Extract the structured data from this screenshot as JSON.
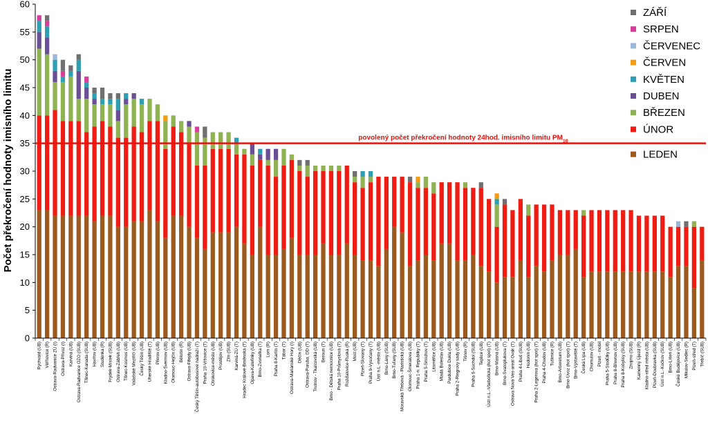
{
  "chart_data": {
    "type": "bar",
    "stacked": true,
    "ylabel": "Počet překročení hodnoty imisního limitu",
    "ylim": [
      0,
      60
    ],
    "yticks": [
      0,
      5,
      10,
      15,
      20,
      25,
      30,
      35,
      40,
      45,
      50,
      55,
      60
    ],
    "grid": false,
    "legend_position": "right",
    "reference_line": {
      "value": 35,
      "label": "povolený počet překročení hodnoty 24hod. imisního limitu PM",
      "label_sub": "10",
      "color": "#e8120c"
    },
    "series_names": [
      "LEDEN",
      "ÚNOR",
      "BŘEZEN",
      "DUBEN",
      "KVĚTEN",
      "ČERVEN",
      "ČERVENEC",
      "SRPEN",
      "ZÁŘÍ"
    ],
    "colors": [
      "#9c5a1e",
      "#ee1c12",
      "#8fb353",
      "#6b4f96",
      "#2e9fb3",
      "#f39c12",
      "#9ab6d8",
      "#d83d9a",
      "#707070"
    ],
    "legend_order": [
      "ZÁŘÍ",
      "SRPEN",
      "ČERVENEC",
      "ČERVEN",
      "KVĚTEN",
      "DUBEN",
      "BŘEZEN",
      "ÚNOR",
      "LEDEN"
    ],
    "categories": [
      "Rychvald (UB)",
      "Věřňovice (R)",
      "Ostrava-Radvanice ZÚ (I)",
      "Ostrava-Přívoz (I)",
      "Karviná (UB)",
      "Ostrava-Radvanice OZO (SUB)",
      "Třinec-Kanada (SUB)",
      "Havířov (UB)",
      "Studénka (R)",
      "Frýdek-Místek (SUB)",
      "Ostrava-Zábřeh (UB)",
      "Třinec-Kosmos (UB)",
      "Valašské Meziříčí (UB)",
      "Český Těšín (UB)",
      "Uherské Hradiště (T)",
      "Přerov (UB)",
      "Kladno-Švermov (UB)",
      "Olomouc-Hejčín (UB)",
      "Bělotín (R)",
      "Ostrava-Fifejdy (UB)",
      "Český Těšín-autobusové nádraží (T)",
      "Praha 10-Vršovice (T)",
      "Otrokovice-město (UB)",
      "Prostějov (UB)",
      "Zlín (SUB)",
      "Karviná-ZÚ (T)",
      "Hradec Králové-Brněnská (T)",
      "Opava-Kateřinky (UB)",
      "Brno-Zvonařka (T)",
      "Lom (R)",
      "Praha 8-Karlín (T)",
      "Tábor (T)",
      "Ostrava-Mariánské Hory (I)",
      "Děčín (UB)",
      "Ostrava-Poruba, DD (T)",
      "Trutnov - Tkalcovská (UB)",
      "Beroun (T)",
      "Brno - Dětská nemocnice (UB)",
      "Praha 10-Průmyslová (T)",
      "Rožďalovice-Ruská (R)",
      "Most (UB)",
      "Plzeň-Slovany (T)",
      "Praha 9-Vysočany (T)",
      "Ústí n.L.-město (UB)",
      "Brno-Lány (SUB)",
      "Brno-Tuřany (SUB)",
      "Moravská Třebová - Piaristická (UB)",
      "Olomouc-Šmeralova (UB)",
      "Praha 1-n. Republiky (T)",
      "Praha 5-Smíchov (T)",
      "Litoměřice (UB)",
      "Mladá Boleslav (UB)",
      "Pardubice Dukla (UB)",
      "Praha 2-Riegrovy sady (UB)",
      "Tišnov (R)",
      "Praha 6-Suchdol (SUB)",
      "Teplice (UB)",
      "Ústí n.L.-Všebořická (hot spot) (T)",
      "Brno-Masná (UB)",
      "Brno-Svatoplukova (T)",
      "Ostrava Nová Ves-areál Ovak (T)",
      "Praha 4-Libuš (SUB)",
      "Hodonín (UB)",
      "Praha 2-Legerova (hot spot) (T)",
      "Praha 4-Chodov (UB)",
      "Tušimice (R)",
      "Brno-Arboretum (UB)",
      "Brno-Úvoz (hot spot) (T)",
      "Brno-Výstaviště (T)",
      "Česká Lípa (UB)",
      "Chomutov (UB)",
      "Plzeň - mobil",
      "Praha 5-Stodůlky (UB)",
      "Praha 8-Břevnov (UB)",
      "Praha 8-Kobylisy (SUB)",
      "Znojmo (SUB)",
      "Kamenný Újezd (R)",
      "Kladno-střed města (UB)",
      "Plzeň-Doubravka (SUB)",
      "Ústí n.L.-Kočkov (SUB)",
      "Brno-Líšeň (UB)",
      "České Budějovice (UB)",
      "Mikulov-Sedlec (R)",
      "Plzeň-střed (T)",
      "Třebíč (SUB)"
    ],
    "series": [
      {
        "name": "LEDEN",
        "values": [
          23,
          23,
          22,
          22,
          22,
          22,
          22,
          21,
          22,
          22,
          20,
          20,
          21,
          21,
          23,
          21,
          18,
          22,
          22,
          20,
          18,
          16,
          19,
          19,
          19,
          20,
          17,
          15,
          20,
          15,
          15,
          16,
          18,
          15,
          15,
          15,
          17,
          15,
          15,
          17,
          15,
          14,
          14,
          13,
          16,
          20,
          19,
          13,
          14,
          15,
          14,
          17,
          17,
          14,
          14,
          15,
          13,
          12,
          10,
          11,
          11,
          14,
          11,
          13,
          12,
          14,
          15,
          15,
          16,
          11,
          12,
          12,
          12,
          12,
          12,
          12,
          12,
          12,
          12,
          12,
          11,
          13,
          13,
          9,
          14
        ]
      },
      {
        "name": "ÚNOR",
        "values": [
          17,
          17,
          19,
          17,
          17,
          17,
          15,
          17,
          17,
          16,
          16,
          16,
          17,
          16,
          16,
          18,
          16,
          16,
          15,
          15,
          13,
          15,
          15,
          15,
          15,
          13,
          16,
          16,
          12,
          16,
          14,
          15,
          14,
          15,
          14,
          15,
          13,
          15,
          15,
          14,
          13,
          13,
          14,
          16,
          13,
          9,
          10,
          15,
          13,
          12,
          12,
          11,
          11,
          14,
          13,
          12,
          14,
          13,
          10,
          13,
          12,
          11,
          11,
          11,
          12,
          10,
          8,
          8,
          7,
          11,
          11,
          11,
          11,
          11,
          11,
          11,
          10,
          10,
          10,
          10,
          9,
          7,
          7,
          11,
          6
        ]
      },
      {
        "name": "BŘEZEN",
        "values": [
          12,
          11,
          5,
          7,
          8,
          4,
          6,
          4,
          3,
          4,
          3,
          6,
          5,
          5,
          4,
          3,
          5,
          2,
          2,
          3,
          6,
          5,
          3,
          3,
          3,
          2,
          1,
          2,
          0,
          1,
          3,
          3,
          1,
          1,
          2,
          1,
          1,
          1,
          1,
          0,
          1,
          2,
          1,
          0,
          0,
          0,
          0,
          0,
          1,
          2,
          2,
          0,
          0,
          0,
          1,
          0,
          0,
          0,
          4,
          0,
          0,
          0,
          2,
          0,
          0,
          0,
          0,
          0,
          0,
          1,
          0,
          0,
          0,
          0,
          0,
          0,
          0,
          0,
          0,
          0,
          0,
          0,
          0,
          1,
          0
        ]
      },
      {
        "name": "DUBEN",
        "values": [
          3,
          3,
          2,
          0,
          0,
          5,
          2,
          1,
          0,
          0,
          2,
          1,
          1,
          0,
          0,
          0,
          0,
          0,
          0,
          1,
          0,
          0,
          0,
          0,
          0,
          0,
          0,
          2,
          1,
          2,
          2,
          0,
          0,
          0,
          0,
          0,
          0,
          0,
          0,
          0,
          0,
          0,
          0,
          0,
          0,
          0,
          0,
          0,
          0,
          0,
          0,
          0,
          0,
          0,
          0,
          0,
          0,
          0,
          0,
          0,
          0,
          0,
          0,
          0,
          0,
          0,
          0,
          0,
          0,
          0,
          0,
          0,
          0,
          0,
          0,
          0,
          0,
          0,
          0,
          0,
          0,
          0,
          0,
          0,
          0
        ]
      },
      {
        "name": "KVĚTEN",
        "values": [
          2,
          2,
          2,
          1,
          1,
          2,
          1,
          1,
          1,
          1,
          2,
          1,
          0,
          1,
          0,
          0,
          0,
          0,
          0,
          0,
          0,
          0,
          0,
          0,
          0,
          1,
          0,
          0,
          1,
          0,
          0,
          0,
          0,
          0,
          0,
          0,
          0,
          0,
          0,
          0,
          0,
          1,
          1,
          0,
          0,
          0,
          0,
          0,
          0,
          0,
          0,
          0,
          0,
          0,
          0,
          0,
          0,
          0,
          1,
          0,
          0,
          0,
          0,
          0,
          0,
          0,
          0,
          0,
          0,
          0,
          0,
          0,
          0,
          0,
          0,
          0,
          0,
          0,
          0,
          0,
          0,
          0,
          0,
          0,
          0
        ]
      },
      {
        "name": "ČERVEN",
        "values": [
          0,
          0,
          0,
          0,
          0,
          0,
          0,
          0,
          0,
          0,
          0,
          0,
          0,
          0,
          0,
          0,
          1,
          0,
          0,
          0,
          0,
          0,
          0,
          0,
          0,
          0,
          0,
          0,
          0,
          0,
          0,
          0,
          0,
          0,
          0,
          0,
          0,
          0,
          0,
          0,
          0,
          0,
          0,
          0,
          0,
          0,
          0,
          0,
          1,
          0,
          0,
          0,
          0,
          0,
          0,
          0,
          0,
          0,
          1,
          0,
          0,
          0,
          0,
          0,
          0,
          0,
          0,
          0,
          0,
          0,
          0,
          0,
          0,
          0,
          0,
          0,
          0,
          0,
          0,
          0,
          0,
          0,
          0,
          0,
          0
        ]
      },
      {
        "name": "ČERVENEC",
        "values": [
          0,
          0,
          1,
          0,
          0,
          0,
          0,
          0,
          0,
          0,
          0,
          0,
          0,
          0,
          0,
          0,
          0,
          0,
          0,
          0,
          0,
          0,
          0,
          0,
          0,
          0,
          0,
          0,
          0,
          0,
          0,
          0,
          0,
          0,
          0,
          0,
          0,
          0,
          0,
          0,
          0,
          0,
          0,
          0,
          0,
          0,
          0,
          0,
          0,
          0,
          0,
          0,
          0,
          0,
          0,
          0,
          0,
          0,
          0,
          0,
          0,
          0,
          0,
          0,
          0,
          0,
          0,
          0,
          0,
          0,
          0,
          0,
          0,
          0,
          0,
          0,
          0,
          0,
          0,
          0,
          0,
          1,
          0,
          0,
          0
        ]
      },
      {
        "name": "SRPEN",
        "values": [
          1,
          1,
          0,
          1,
          0,
          0,
          1,
          0,
          0,
          0,
          0,
          0,
          0,
          0,
          0,
          0,
          0,
          0,
          0,
          0,
          1,
          0,
          0,
          0,
          0,
          0,
          0,
          0,
          0,
          0,
          0,
          0,
          0,
          0,
          0,
          0,
          0,
          0,
          0,
          0,
          0,
          0,
          0,
          0,
          0,
          0,
          0,
          0,
          0,
          0,
          0,
          0,
          0,
          0,
          0,
          0,
          0,
          0,
          0,
          0,
          0,
          0,
          0,
          0,
          0,
          0,
          0,
          0,
          0,
          0,
          0,
          0,
          0,
          0,
          0,
          0,
          0,
          0,
          0,
          0,
          0,
          0,
          0,
          0,
          0
        ]
      },
      {
        "name": "ZÁŘÍ",
        "values": [
          0,
          1,
          0,
          2,
          1,
          1,
          0,
          1,
          2,
          1,
          1,
          0,
          0,
          0,
          0,
          0,
          0,
          0,
          0,
          0,
          0,
          2,
          0,
          0,
          0,
          0,
          0,
          0,
          0,
          0,
          0,
          0,
          0,
          1,
          1,
          0,
          0,
          0,
          0,
          0,
          1,
          0,
          0,
          0,
          0,
          0,
          0,
          1,
          0,
          0,
          0,
          0,
          0,
          0,
          0,
          0,
          1,
          0,
          0,
          1,
          0,
          0,
          0,
          0,
          0,
          0,
          0,
          0,
          0,
          0,
          0,
          0,
          0,
          0,
          0,
          0,
          0,
          0,
          0,
          0,
          0,
          0,
          1,
          0,
          0
        ]
      }
    ]
  }
}
